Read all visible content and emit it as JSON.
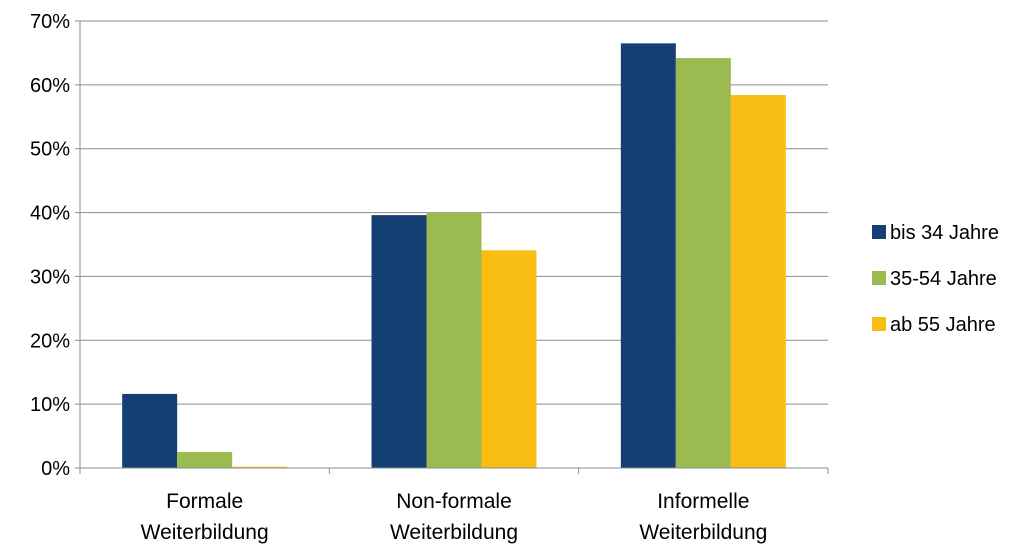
{
  "chart_data": {
    "type": "bar",
    "title": "",
    "xlabel": "",
    "ylabel": "",
    "categories": [
      [
        "Formale",
        "Weiterbildung"
      ],
      [
        "Non-formale",
        "Weiterbildung"
      ],
      [
        "Informelle",
        "Weiterbildung"
      ]
    ],
    "series": [
      {
        "name": "bis 34 Jahre",
        "color": "#143F73",
        "values": [
          11.6,
          39.6,
          66.5
        ]
      },
      {
        "name": "35-54 Jahre",
        "color": "#9BBB50",
        "values": [
          2.5,
          40.0,
          64.2
        ]
      },
      {
        "name": "ab 55 Jahre",
        "color": "#F9BE14",
        "values": [
          0.2,
          34.1,
          58.4
        ]
      }
    ],
    "ylim": [
      0,
      70
    ],
    "yticks": [
      0,
      10,
      20,
      30,
      40,
      50,
      60,
      70
    ],
    "ytick_format": "percent",
    "grid": true,
    "gridline_color": "#8C8C8C",
    "legend_placement": "right"
  }
}
